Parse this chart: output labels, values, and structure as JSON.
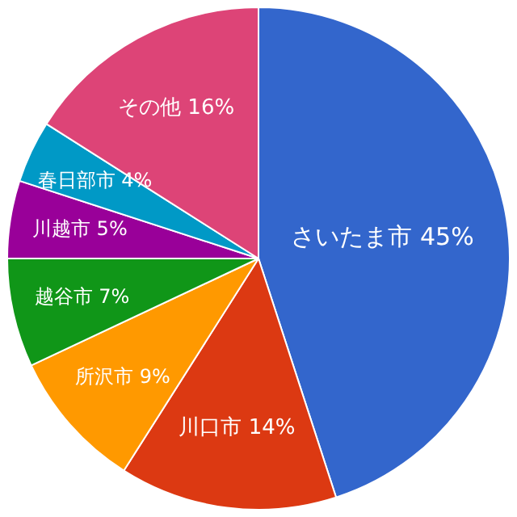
{
  "chart_data": {
    "type": "pie",
    "categories": [
      "さいたま市",
      "川口市",
      "所沢市",
      "越谷市",
      "川越市",
      "春日部市",
      "その他"
    ],
    "values": [
      45,
      14,
      9,
      7,
      5,
      4,
      16
    ],
    "colors": [
      "#3366cc",
      "#dc3912",
      "#ff9900",
      "#109618",
      "#990099",
      "#0099c6",
      "#dd4477"
    ],
    "value_labels": [
      "45%",
      "14%",
      "9%",
      "7%",
      "5%",
      "4%",
      "16%"
    ],
    "legend": false
  }
}
